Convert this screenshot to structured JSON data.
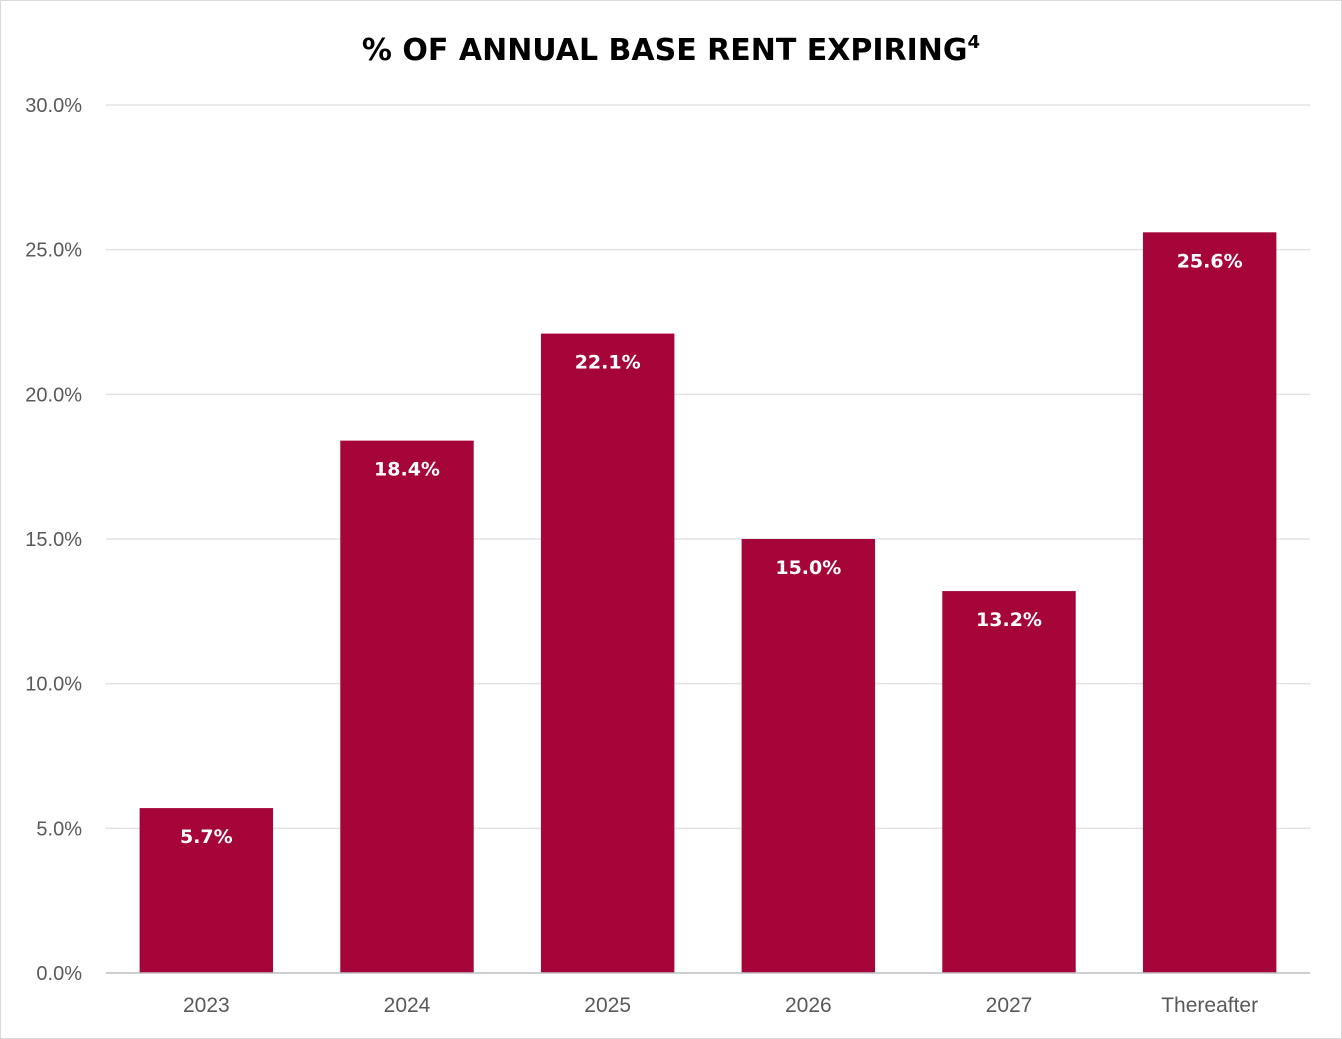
{
  "chart_data": {
    "type": "bar",
    "title": "% OF ANNUAL BASE RENT EXPIRING",
    "title_superscript": "4",
    "categories": [
      "2023",
      "2024",
      "2025",
      "2026",
      "2027",
      "Thereafter"
    ],
    "values": [
      5.7,
      18.4,
      22.1,
      15.0,
      13.2,
      25.6
    ],
    "data_labels": [
      "5.7%",
      "18.4%",
      "22.1%",
      "15.0%",
      "13.2%",
      "25.6%"
    ],
    "ylim": [
      0,
      30
    ],
    "yticks": [
      0,
      5,
      10,
      15,
      20,
      25,
      30
    ],
    "ytick_labels": [
      "0.0%",
      "5.0%",
      "10.0%",
      "15.0%",
      "20.0%",
      "25.0%",
      "30.0%"
    ],
    "xlabel": "",
    "ylabel": "",
    "grid": true,
    "bar_color": "#a6053a"
  }
}
